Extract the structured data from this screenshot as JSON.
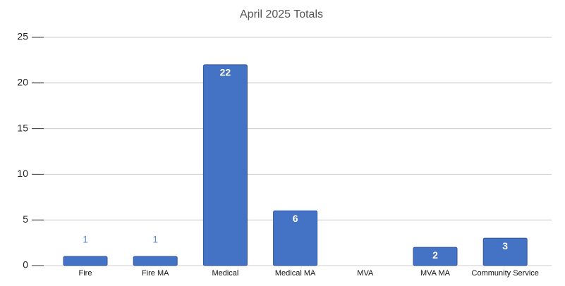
{
  "chart_data": {
    "type": "bar",
    "title": "April 2025 Totals",
    "categories": [
      "Fire",
      "Fire MA",
      "Medical",
      "Medical MA",
      "MVA",
      "MVA MA",
      "Community Service"
    ],
    "values": [
      1,
      1,
      22,
      6,
      null,
      2,
      3
    ],
    "color": "#4472c4",
    "ylim": [
      0,
      25
    ],
    "yticks": [
      0,
      5,
      10,
      15,
      20,
      25
    ],
    "grid": true
  }
}
